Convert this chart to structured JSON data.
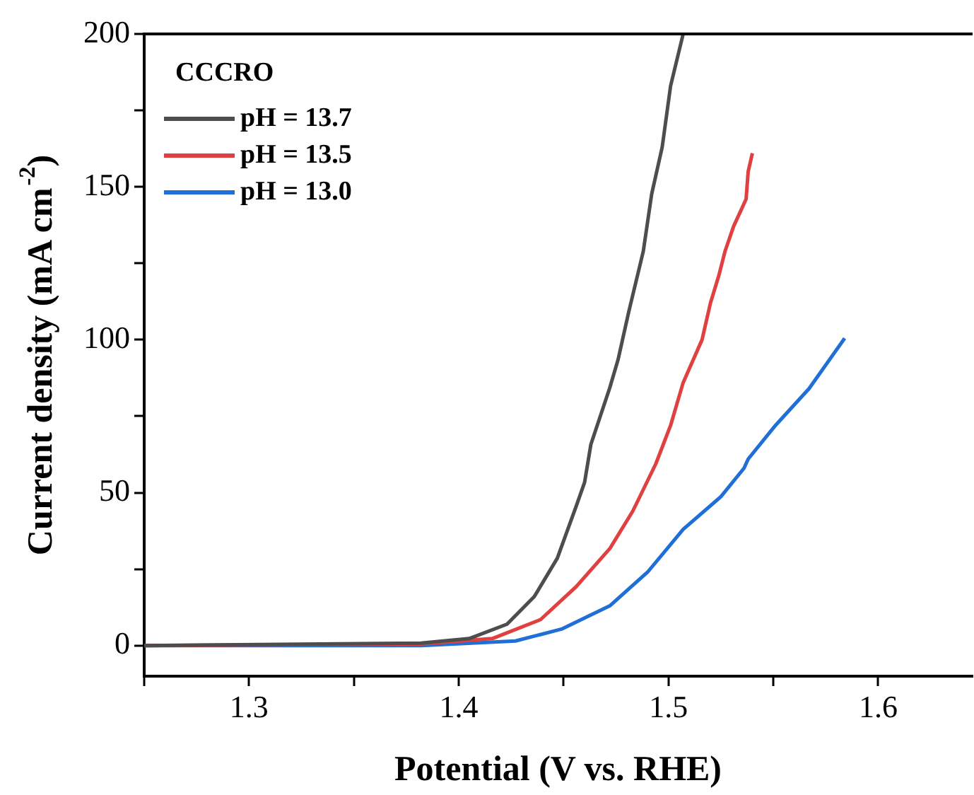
{
  "chart_data": {
    "type": "line",
    "xlabel": "Potential (V vs. RHE)",
    "ylabel": "Current density (mA cm$^{-2}$)",
    "legend_title": "CCCRO",
    "xlim": [
      1.25,
      1.645
    ],
    "xticks": [
      {
        "value": 1.25,
        "label": null
      },
      1.3,
      {
        "value": 1.35,
        "label": null
      },
      1.4,
      {
        "value": 1.45,
        "label": null
      },
      1.5,
      {
        "value": 1.55,
        "label": null
      },
      1.6
    ],
    "ylim": [
      -10,
      200
    ],
    "yticks": [
      0,
      {
        "value": 25,
        "label": null
      },
      50,
      {
        "value": 75,
        "label": null
      },
      100,
      {
        "value": 125,
        "label": null
      },
      150,
      {
        "value": 175,
        "label": null
      },
      200
    ],
    "grid": false,
    "legend": "top left",
    "marker": "none",
    "line_style": "solid",
    "series": [
      {
        "name": "pH = 13.7",
        "color": "#4d4d4d",
        "x": [
          1.25,
          1.382,
          1.405,
          1.423,
          1.436,
          1.447,
          1.456,
          1.46,
          1.463,
          1.472,
          1.476,
          1.481,
          1.488,
          1.492,
          1.497,
          1.501,
          1.507
        ],
        "values": [
          0,
          0.8,
          2.3,
          7,
          16,
          28.6,
          45.6,
          53.4,
          65.8,
          84.3,
          93.6,
          109,
          129,
          147.7,
          163,
          183,
          200
        ]
      },
      {
        "name": "pH = 13.5",
        "color": "#e04040",
        "x": [
          1.25,
          1.382,
          1.416,
          1.439,
          1.456,
          1.472,
          1.483,
          1.494,
          1.501,
          1.507,
          1.516,
          1.52,
          1.524,
          1.527,
          1.531,
          1.537,
          1.538,
          1.54
        ],
        "values": [
          0,
          0.5,
          2.3,
          8.5,
          19.3,
          31.7,
          44,
          59.5,
          72,
          86,
          100,
          112,
          121,
          129,
          137,
          146,
          155,
          161
        ]
      },
      {
        "name": "pH = 13.0",
        "color": "#1f6fd6",
        "x": [
          1.25,
          1.382,
          1.427,
          1.449,
          1.472,
          1.49,
          1.507,
          1.525,
          1.536,
          1.538,
          1.551,
          1.567,
          1.584
        ],
        "values": [
          0,
          0,
          1.5,
          5.4,
          13,
          24,
          38,
          48.7,
          58,
          61,
          72,
          84,
          100.5
        ]
      }
    ]
  }
}
